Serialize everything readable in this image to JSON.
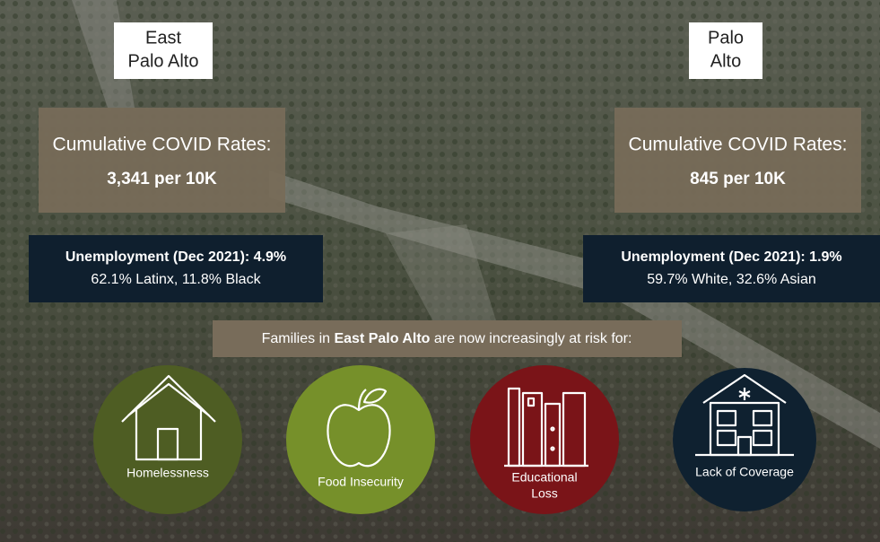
{
  "locations": [
    {
      "label": [
        "East",
        "Palo Alto"
      ],
      "covid": {
        "title": "Cumulative COVID Rates:",
        "rate": "3,341 per 10K"
      },
      "unemployment": {
        "title": "Unemployment (Dec 2021): 4.9%",
        "demographics": "62.1% Latinx, 11.8% Black"
      }
    },
    {
      "label": [
        "Palo",
        "Alto"
      ],
      "covid": {
        "title": "Cumulative COVID Rates:",
        "rate": "845 per 10K"
      },
      "unemployment": {
        "title": "Unemployment (Dec 2021): 1.9%",
        "demographics": "59.7% White, 32.6% Asian"
      }
    }
  ],
  "banner": {
    "prefix": "Families in ",
    "emphasis": "East Palo Alto",
    "suffix": " are now increasingly at risk for:"
  },
  "risks": [
    {
      "label": [
        "Homelessness"
      ]
    },
    {
      "label": [
        "Food Insecurity"
      ]
    },
    {
      "label": [
        "Educational",
        "Loss"
      ]
    },
    {
      "label": [
        "Lack of Coverage"
      ]
    }
  ]
}
